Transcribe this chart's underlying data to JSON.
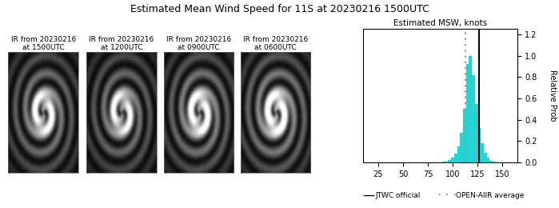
{
  "title": "Estimated Mean Wind Speed for 11S at 20230216 1500UTC",
  "chart_subtitle": "Estimated MSW, knots",
  "jtwc_official": 127,
  "open_aiir_avg": 113,
  "hist_bin_centers": [
    91,
    94,
    97,
    100,
    103,
    106,
    109,
    112,
    115,
    118,
    121,
    124,
    127,
    130,
    133,
    136,
    139,
    142
  ],
  "hist_values": [
    0.003,
    0.008,
    0.018,
    0.04,
    0.08,
    0.15,
    0.28,
    0.5,
    0.92,
    1.0,
    0.82,
    0.55,
    0.32,
    0.18,
    0.09,
    0.04,
    0.015,
    0.005
  ],
  "bar_color": "#22D4D4",
  "jtwc_color": "#000000",
  "open_aiir_color": "#A09080",
  "xlim": [
    10,
    165
  ],
  "ylim": [
    0.0,
    1.25
  ],
  "xticks": [
    25,
    50,
    75,
    100,
    125,
    150
  ],
  "yticks": [
    0.0,
    0.2,
    0.4,
    0.6,
    0.8,
    1.0,
    1.2
  ],
  "ylabel": "Relative Prob",
  "image_labels": [
    "IR from 20230216\nat 1500UTC",
    "IR from 20230216\nat 1200UTC",
    "IR from 20230216\nat 0900UTC",
    "IR from 20230216\nat 0600UTC"
  ],
  "legend_jtwc": "JTWC official",
  "legend_aiir": "OPEN-AIIR average",
  "fig_width": 6.99,
  "fig_height": 2.6,
  "dpi": 100,
  "bar_width": 3.0
}
